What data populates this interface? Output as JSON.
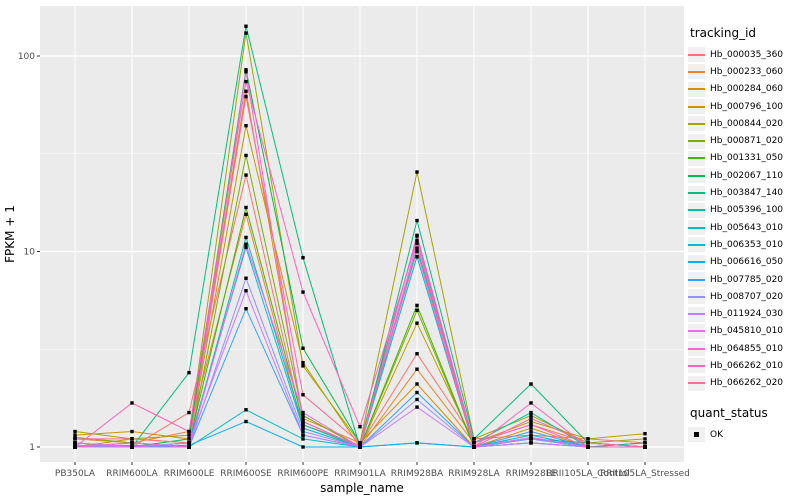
{
  "chart_data": {
    "type": "line",
    "xlabel": "sample_name",
    "ylabel": "FPKM + 1",
    "y_scale": "log10",
    "y_ticks": [
      1,
      10,
      100
    ],
    "panel_bg": "#EBEBEB",
    "grid_color": "#FFFFFF",
    "point_color": "#000000",
    "axis_text_color": "#4D4D4D",
    "legend_position": "right",
    "categories": [
      "PB350LA",
      "RRIM600LA",
      "RRIM600LE",
      "RRIM600SE",
      "RRIM600PE",
      "RRIM901LA",
      "RRIM928BA",
      "RRIM928LA",
      "RRIM928LE",
      "RRII105LA_Control",
      "RRII105LA_Stressed"
    ],
    "series": [
      {
        "name": "Hb_000035_360",
        "color": "#F8766D",
        "values": [
          1.05,
          1.0,
          1.5,
          24.6,
          1.3,
          1.02,
          3.0,
          1.1,
          1.15,
          1.1,
          1.05
        ]
      },
      {
        "name": "Hb_000233_060",
        "color": "#EA8331",
        "values": [
          1.1,
          1.05,
          1.2,
          15.5,
          1.25,
          1.0,
          2.5,
          1.05,
          1.3,
          1.05,
          1.0
        ]
      },
      {
        "name": "Hb_000284_060",
        "color": "#D89000",
        "values": [
          1.15,
          1.2,
          1.1,
          66,
          1.4,
          1.05,
          2.1,
          1.0,
          1.25,
          1.0,
          1.05
        ]
      },
      {
        "name": "Hb_000796_100",
        "color": "#C09B00",
        "values": [
          1.0,
          1.1,
          1.05,
          44,
          2.7,
          1.0,
          4.3,
          1.05,
          1.35,
          1.1,
          1.17
        ]
      },
      {
        "name": "Hb_000844_020",
        "color": "#A3A500",
        "values": [
          1.2,
          1.1,
          1.15,
          131,
          2.6,
          1.05,
          25.5,
          1.1,
          1.45,
          1.05,
          1.1
        ]
      },
      {
        "name": "Hb_000871_020",
        "color": "#7CAE00",
        "values": [
          1.12,
          1.05,
          1.0,
          31,
          1.45,
          1.0,
          5.0,
          1.0,
          1.1,
          1.0,
          1.0
        ]
      },
      {
        "name": "Hb_001331_050",
        "color": "#49B500",
        "values": [
          1.0,
          1.0,
          1.05,
          16.8,
          1.35,
          1.0,
          5.3,
          1.0,
          1.05,
          1.0,
          1.0
        ]
      },
      {
        "name": "Hb_002067_110",
        "color": "#00BB4E",
        "values": [
          1.05,
          1.0,
          1.1,
          85,
          3.2,
          1.05,
          12.0,
          1.0,
          1.1,
          1.05,
          1.0
        ]
      },
      {
        "name": "Hb_003847_140",
        "color": "#00BF7D",
        "values": [
          1.0,
          1.0,
          2.4,
          142,
          9.3,
          1.0,
          14.4,
          1.1,
          2.1,
          1.05,
          1.0
        ]
      },
      {
        "name": "Hb_005396_100",
        "color": "#00C1A3",
        "values": [
          1.05,
          1.0,
          1.0,
          11.8,
          1.3,
          1.0,
          10.4,
          1.05,
          1.5,
          1.0,
          1.05
        ]
      },
      {
        "name": "Hb_005643_010",
        "color": "#00BFC4",
        "values": [
          1.0,
          1.05,
          1.0,
          1.55,
          1.1,
          1.0,
          1.05,
          1.0,
          1.1,
          1.0,
          1.0
        ]
      },
      {
        "name": "Hb_006353_010",
        "color": "#00BAE0",
        "values": [
          1.02,
          1.0,
          1.05,
          10.5,
          1.25,
          1.0,
          9.4,
          1.0,
          1.15,
          1.0,
          1.0
        ]
      },
      {
        "name": "Hb_006616_050",
        "color": "#00B0F6",
        "values": [
          1.0,
          1.0,
          1.02,
          1.35,
          1.0,
          1.0,
          1.05,
          1.0,
          1.05,
          1.0,
          1.0
        ]
      },
      {
        "name": "Hb_007785_020",
        "color": "#35A2FF",
        "values": [
          1.0,
          1.02,
          1.0,
          5.1,
          1.15,
          1.0,
          1.9,
          1.0,
          1.2,
          1.0,
          1.0
        ]
      },
      {
        "name": "Hb_008707_020",
        "color": "#9590FF",
        "values": [
          1.02,
          1.0,
          1.0,
          7.3,
          1.2,
          1.0,
          1.75,
          1.0,
          1.1,
          1.0,
          1.0
        ]
      },
      {
        "name": "Hb_011924_030",
        "color": "#C77CFF",
        "values": [
          1.0,
          1.0,
          1.05,
          6.3,
          1.15,
          1.0,
          1.6,
          1.0,
          1.05,
          1.0,
          1.0
        ]
      },
      {
        "name": "Hb_045810_010",
        "color": "#E76BF3",
        "values": [
          1.05,
          1.0,
          1.0,
          10.9,
          1.5,
          1.0,
          11.0,
          1.0,
          1.12,
          1.0,
          1.0
        ]
      },
      {
        "name": "Hb_064855_010",
        "color": "#FA62DB",
        "values": [
          1.0,
          1.05,
          1.0,
          83,
          1.35,
          1.0,
          12.1,
          1.05,
          1.3,
          1.0,
          1.0
        ]
      },
      {
        "name": "Hb_066262_010",
        "color": "#FF62BC",
        "values": [
          1.0,
          1.68,
          1.2,
          74,
          6.2,
          1.27,
          11.4,
          1.0,
          1.68,
          1.0,
          1.0
        ]
      },
      {
        "name": "Hb_066262_020",
        "color": "#FF6A98",
        "values": [
          1.1,
          1.1,
          1.05,
          62,
          1.85,
          1.05,
          10.0,
          1.0,
          1.4,
          1.05,
          1.0
        ]
      }
    ],
    "legend": {
      "tracking_title": "tracking_id",
      "quant_title": "quant_status",
      "quant_items": [
        {
          "label": "OK"
        }
      ]
    }
  }
}
